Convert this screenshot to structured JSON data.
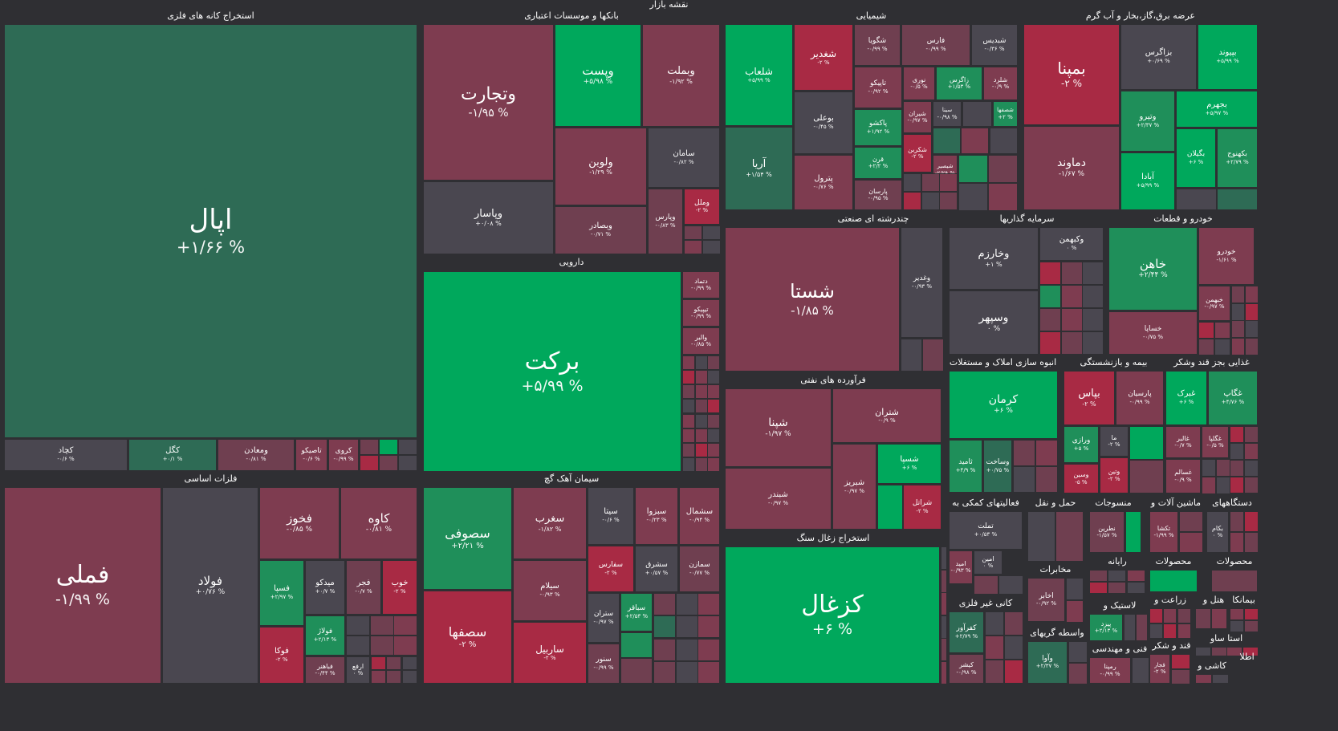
{
  "title": "نقشه بازار",
  "colors": {
    "background": "#2f2f33",
    "strong_positive": "#00a85c",
    "positive": "#1f8f5a",
    "slight_positive": "#2e6b55",
    "neutral": "#4a4750",
    "slight_negative": "#6f3f50",
    "negative": "#7e3c50",
    "strong_negative": "#a82a44"
  },
  "sectors": [
    {
      "name": "استخراج کانه های فلزی",
      "stocks": [
        {
          "name": "اپال",
          "change": "+۱/۶۶ %"
        },
        {
          "name": "کچاد",
          "change": "-۰/۶ %"
        },
        {
          "name": "کگل",
          "change": "+۰/۱ %"
        },
        {
          "name": "ومعادن",
          "change": "-۰/۸۱ %"
        },
        {
          "name": "تاصیکو",
          "change": "-۰/۶ %"
        },
        {
          "name": "کروی",
          "change": "-۰/۹۹ %"
        }
      ]
    },
    {
      "name": "فلزات اساسی",
      "stocks": [
        {
          "name": "فملی",
          "change": "-۱/۹۹ %"
        },
        {
          "name": "فولاد",
          "change": "+۰/۷۶ %"
        },
        {
          "name": "فخوز",
          "change": "-۰/۸۵ %"
        },
        {
          "name": "کاوه",
          "change": "-۰/۸۱ %"
        },
        {
          "name": "فسپا",
          "change": "+۲/۹۷ %"
        },
        {
          "name": "میدکو",
          "change": "+۰/۷ %"
        },
        {
          "name": "فجر",
          "change": "-۰/۷ %"
        },
        {
          "name": "خوب",
          "change": "-۲ %"
        },
        {
          "name": "فولاژ",
          "change": "+۲/۱۳ %"
        },
        {
          "name": "فوکا",
          "change": "-۲ %"
        },
        {
          "name": "فباهنر",
          "change": "-۰/۴۴ %"
        },
        {
          "name": "ارفع",
          "change": "۰ %"
        }
      ]
    },
    {
      "name": "بانکها و موسسات اعتباری",
      "stocks": [
        {
          "name": "وتجارت",
          "change": "-۱/۹۵ %"
        },
        {
          "name": "وپست",
          "change": "+۵/۹۸ %"
        },
        {
          "name": "وبملت",
          "change": "-۱/۹۲ %"
        },
        {
          "name": "ولوبن",
          "change": "-۱/۲۹ %"
        },
        {
          "name": "سامان",
          "change": "-۰/۸۲ %"
        },
        {
          "name": "وپاسار",
          "change": "+۰/۰۸ %"
        },
        {
          "name": "وبصادر",
          "change": "-۰/۷۱ %"
        },
        {
          "name": "وپارس",
          "change": "-۰/۸۳ %"
        },
        {
          "name": "وملل",
          "change": "-۲ %"
        }
      ]
    },
    {
      "name": "دارویی",
      "stocks": [
        {
          "name": "برکت",
          "change": "+۵/۹۹ %"
        },
        {
          "name": "دتماد",
          "change": "-۰/۹۹ %"
        },
        {
          "name": "تیپیکو",
          "change": "-۰/۹۹ %"
        },
        {
          "name": "والبر",
          "change": "-۰/۸۵ %"
        }
      ]
    },
    {
      "name": "سیمان آهک گچ",
      "stocks": [
        {
          "name": "سصوفی",
          "change": "+۲/۲۱ %"
        },
        {
          "name": "سصفها",
          "change": "-۲ %"
        },
        {
          "name": "سغرب",
          "change": "-۱/۸۲ %"
        },
        {
          "name": "سیتا",
          "change": "-۰/۶ %"
        },
        {
          "name": "سبزوا",
          "change": "-۰/۲۳ %"
        },
        {
          "name": "سشمال",
          "change": "-۰/۹۴ %"
        },
        {
          "name": "سیلام",
          "change": "-۰/۹۳ %"
        },
        {
          "name": "سفارس",
          "change": "-۲ %"
        },
        {
          "name": "سشرق",
          "change": "+۰/۵۷ %"
        },
        {
          "name": "سمازن",
          "change": "-۰/۷۷ %"
        },
        {
          "name": "ساربیل",
          "change": "-۲ %"
        },
        {
          "name": "ستران",
          "change": "-۰/۹۷ %"
        },
        {
          "name": "سباقر",
          "change": "+۲/۵۳ %"
        },
        {
          "name": "سنور",
          "change": "-۰/۹۹ %"
        }
      ]
    },
    {
      "name": "شیمیایی",
      "stocks": [
        {
          "name": "شلعاب",
          "change": "+۵/۹۹ %"
        },
        {
          "name": "آریا",
          "change": "+۱/۵۴ %"
        },
        {
          "name": "شغدیر",
          "change": "-۲ %"
        },
        {
          "name": "بوعلی",
          "change": "-۰/۴۵ %"
        },
        {
          "name": "پترول",
          "change": "-۰/۷۶ %"
        },
        {
          "name": "شگویا",
          "change": "-۰/۹۹ %"
        },
        {
          "name": "فارس",
          "change": "-۰/۹۹ %"
        },
        {
          "name": "شبدیس",
          "change": "-۰/۳۶ %"
        },
        {
          "name": "تاپیکو",
          "change": "-۰/۹۲ %"
        },
        {
          "name": "نوری",
          "change": "-۰/۵ %"
        },
        {
          "name": "زاگرس",
          "change": "+۱/۵۳ %"
        },
        {
          "name": "شلرد",
          "change": "-۰/۹ %"
        },
        {
          "name": "پاکشو",
          "change": "+۱/۹۲ %"
        },
        {
          "name": "شیران",
          "change": "-۰/۹۷ %"
        },
        {
          "name": "سینا",
          "change": "-۰/۹۸ %"
        },
        {
          "name": "شصفها",
          "change": "+۲ %"
        },
        {
          "name": "قرن",
          "change": "+۲/۲ %"
        },
        {
          "name": "شکربن",
          "change": "-۲ %"
        },
        {
          "name": "شیصیر",
          "change": "-۲/۲۹ %"
        },
        {
          "name": "پارسان",
          "change": "-۰/۹۵ %"
        }
      ]
    },
    {
      "name": "عرضه برق،گاز،بخار و آب گرم",
      "stocks": [
        {
          "name": "بمپنا",
          "change": "-۲ %"
        },
        {
          "name": "بزاگرس",
          "change": "+۰/۶۹ %"
        },
        {
          "name": "بپیوند",
          "change": "+۵/۹۹ %"
        },
        {
          "name": "وتیرو",
          "change": "+۲/۳۷ %"
        },
        {
          "name": "بجهرم",
          "change": "+۵/۹۷ %"
        },
        {
          "name": "دماوند",
          "change": "-۱/۶۷ %"
        },
        {
          "name": "بگیلان",
          "change": "+۶ %"
        },
        {
          "name": "بکهنوج",
          "change": "+۲/۷۹ %"
        },
        {
          "name": "آبادا",
          "change": "+۵/۹۹ %"
        }
      ]
    },
    {
      "name": "چندرشته ای صنعتی",
      "stocks": [
        {
          "name": "شستا",
          "change": "-۱/۸۵ %"
        },
        {
          "name": "وغدیر",
          "change": "-۰/۹۳ %"
        }
      ]
    },
    {
      "name": "فرآورده های نفتی",
      "stocks": [
        {
          "name": "شپنا",
          "change": "-۱/۹۷ %"
        },
        {
          "name": "شتران",
          "change": "-۰/۹ %"
        },
        {
          "name": "شبندر",
          "change": "-۰/۹۷ %"
        },
        {
          "name": "شبریز",
          "change": "-۰/۹۷ %"
        },
        {
          "name": "شسپا",
          "change": "+۶ %"
        },
        {
          "name": "شراتل",
          "change": "-۲ %"
        }
      ]
    },
    {
      "name": "استخراج زغال سنگ",
      "stocks": [
        {
          "name": "کزغال",
          "change": "+۶ %"
        }
      ]
    },
    {
      "name": "سرمایه گذاریها",
      "stocks": [
        {
          "name": "وخارزم",
          "change": "+۱ %"
        },
        {
          "name": "وکبهمن",
          "change": "۰ %"
        },
        {
          "name": "وسپهر",
          "change": "۰ %"
        }
      ]
    },
    {
      "name": "خودرو و قطعات",
      "stocks": [
        {
          "name": "خاهن",
          "change": "+۲/۴۴ %"
        },
        {
          "name": "خودرو",
          "change": "-۱/۶۱ %"
        },
        {
          "name": "خبهمن",
          "change": "-۰/۹۷ %"
        },
        {
          "name": "خساپا",
          "change": "-۰/۷۵ %"
        }
      ]
    },
    {
      "name": "انبوه سازی املاک و مستغلات",
      "stocks": [
        {
          "name": "کرمان",
          "change": "+۶ %"
        },
        {
          "name": "ثامید",
          "change": "+۴/۹ %"
        },
        {
          "name": "وساخت",
          "change": "+۰/۷۵ %"
        }
      ]
    },
    {
      "name": "بیمه و بازنشستگی",
      "stocks": [
        {
          "name": "بپاس",
          "change": "-۲ %"
        },
        {
          "name": "پارسیان",
          "change": "-۰/۹۹ %"
        },
        {
          "name": "ورازی",
          "change": "+۵ %"
        },
        {
          "name": "ما",
          "change": "-۲ %"
        },
        {
          "name": "وسین",
          "change": "-۵ %"
        },
        {
          "name": "وتین",
          "change": "-۲ %"
        }
      ]
    },
    {
      "name": "غذایی بجز قند وشکر",
      "stocks": [
        {
          "name": "غبرک",
          "change": "+۶ %"
        },
        {
          "name": "غگاپ",
          "change": "+۴/۷۶ %"
        },
        {
          "name": "غالبر",
          "change": "-۰/۷ %"
        },
        {
          "name": "غگلپا",
          "change": "-۰/۵ %"
        },
        {
          "name": "غسالم",
          "change": "-۰/۹ %"
        }
      ]
    },
    {
      "name": "فعالیتهای کمکی به",
      "stocks": [
        {
          "name": "تملت",
          "change": "+۰/۵۳ %"
        },
        {
          "name": "امید",
          "change": "-۰/۹۳ %"
        },
        {
          "name": "امین",
          "change": "۰ %"
        }
      ]
    },
    {
      "name": "حمل و نقل",
      "stocks": []
    },
    {
      "name": "منسوجات",
      "stocks": [
        {
          "name": "نطرین",
          "change": "-۱/۵۷ %"
        }
      ]
    },
    {
      "name": "ماشین آلات و",
      "stocks": [
        {
          "name": "تکشا",
          "change": "-۱/۹۹ %"
        }
      ]
    },
    {
      "name": "دستگاههای",
      "stocks": [
        {
          "name": "بکام",
          "change": "۰ %"
        }
      ]
    },
    {
      "name": "مخابرات",
      "stocks": [
        {
          "name": "اخابر",
          "change": "-۰/۹۲ %"
        }
      ]
    },
    {
      "name": "رایانه",
      "stocks": []
    },
    {
      "name": "محصولات",
      "stocks": []
    },
    {
      "name": "کانی غیر فلزی",
      "stocks": [
        {
          "name": "کفرآور",
          "change": "+۲/۷۹ %"
        },
        {
          "name": "کیشر",
          "change": "-۰/۹۸ %"
        }
      ]
    },
    {
      "name": "واسطه گریهای",
      "stocks": [
        {
          "name": "وآوا",
          "change": "+۲/۳۷ %"
        }
      ]
    },
    {
      "name": "لاستیک و",
      "stocks": [
        {
          "name": "پیزد",
          "change": "+۲/۱۳ %"
        }
      ]
    },
    {
      "name": "فنی و مهندسی",
      "stocks": [
        {
          "name": "رمپنا",
          "change": "-۰/۹۹ %"
        }
      ]
    },
    {
      "name": "قند و شکر",
      "stocks": [
        {
          "name": "قجار",
          "change": "-۲ %"
        }
      ]
    },
    {
      "name": "زراعت و",
      "stocks": []
    },
    {
      "name": "هتل و",
      "stocks": []
    },
    {
      "name": "بیمانکا",
      "stocks": []
    },
    {
      "name": "محصولات",
      "stocks": []
    },
    {
      "name": "استا ساو",
      "stocks": []
    },
    {
      "name": "اطلا",
      "stocks": []
    },
    {
      "name": "کاشی و",
      "stocks": []
    }
  ]
}
